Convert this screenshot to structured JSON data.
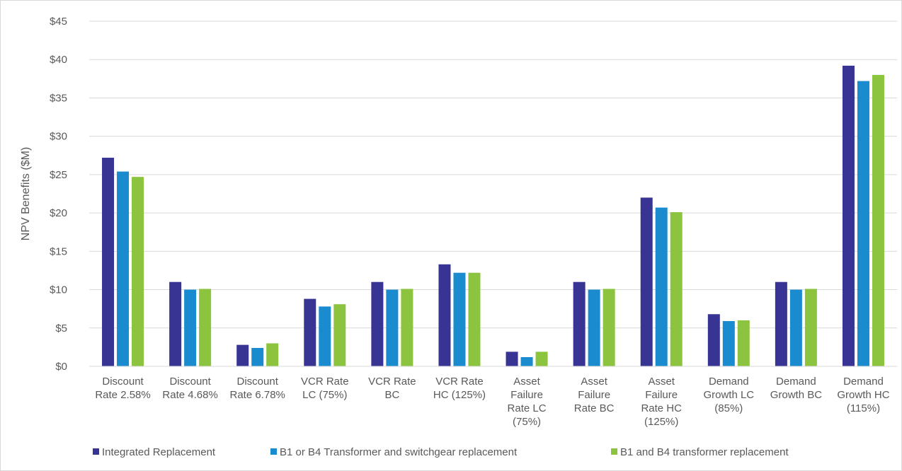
{
  "chart_data": {
    "type": "bar",
    "title": "",
    "xlabel": "",
    "ylabel": "NPV Benefits ($M)",
    "ylim": [
      0,
      45
    ],
    "ytick_step": 5,
    "ytick_format": "$",
    "grid": true,
    "legend_position": "bottom",
    "categories": [
      [
        "Discount",
        "Rate 2.58%"
      ],
      [
        "Discount",
        "Rate 4.68%"
      ],
      [
        "Discount",
        "Rate 6.78%"
      ],
      [
        "VCR Rate",
        "LC (75%)"
      ],
      [
        "VCR Rate",
        "BC"
      ],
      [
        "VCR Rate",
        "HC (125%)"
      ],
      [
        "Asset",
        "Failure",
        "Rate LC",
        "(75%)"
      ],
      [
        "Asset",
        "Failure",
        "Rate BC"
      ],
      [
        "Asset",
        "Failure",
        "Rate HC",
        "(125%)"
      ],
      [
        "Demand",
        "Growth LC",
        "(85%)"
      ],
      [
        "Demand",
        "Growth BC"
      ],
      [
        "Demand",
        "Growth HC",
        "(115%)"
      ]
    ],
    "series": [
      {
        "name": "Integrated Replacement",
        "color": "#373493",
        "values": [
          27.2,
          11.0,
          2.8,
          8.8,
          11.0,
          13.3,
          1.9,
          11.0,
          22.0,
          6.8,
          11.0,
          39.2
        ]
      },
      {
        "name": "B1 or B4 Transformer and switchgear replacement",
        "color": "#1a8bcf",
        "values": [
          25.4,
          10.0,
          2.4,
          7.8,
          10.0,
          12.2,
          1.2,
          10.0,
          20.7,
          5.9,
          10.0,
          37.2
        ]
      },
      {
        "name": "B1 and B4 transformer replacement",
        "color": "#8cc43f",
        "values": [
          24.7,
          10.1,
          3.0,
          8.1,
          10.1,
          12.2,
          1.9,
          10.1,
          20.1,
          6.0,
          10.1,
          38.0
        ]
      }
    ]
  }
}
